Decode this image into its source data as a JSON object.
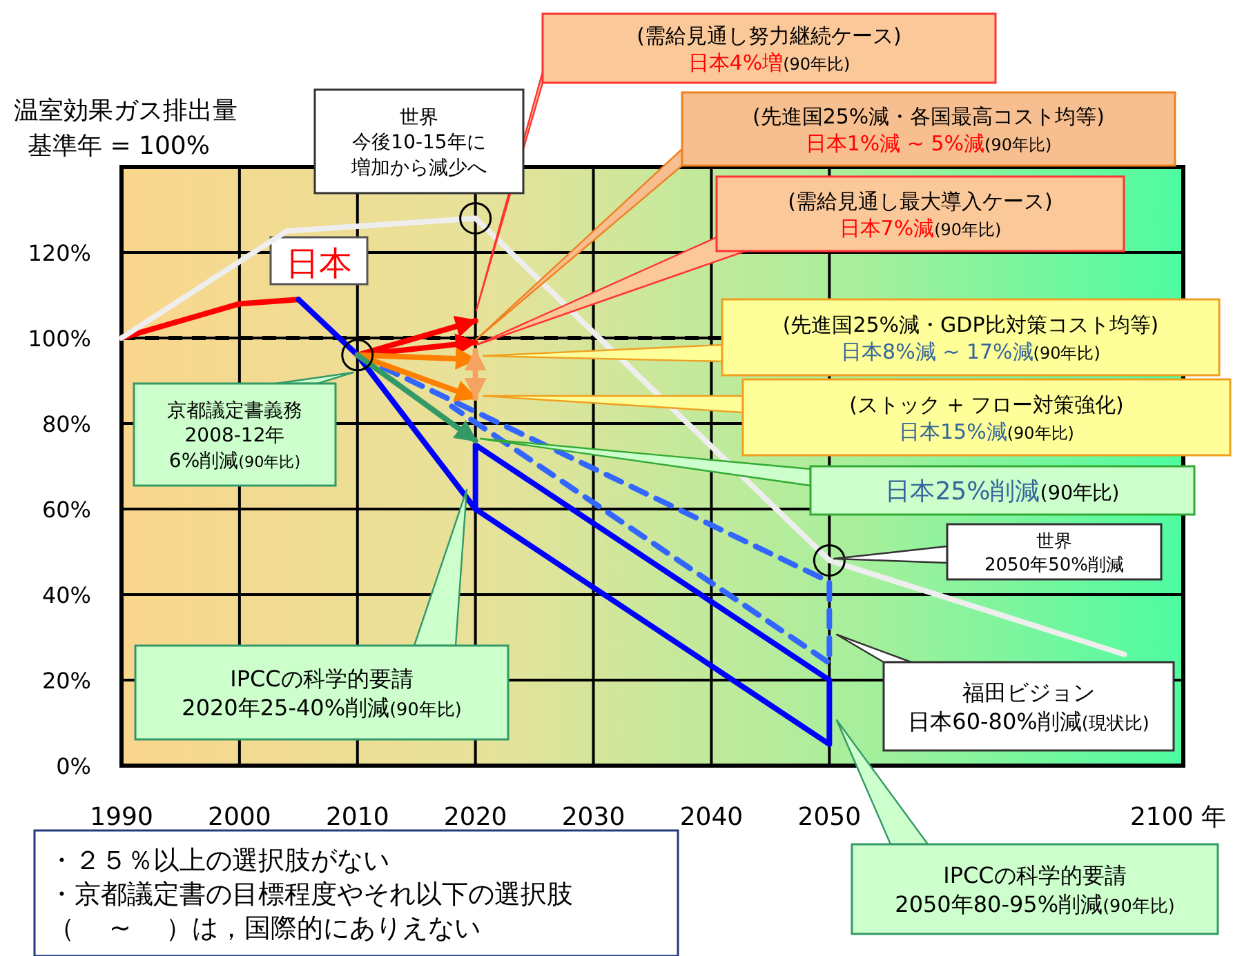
{
  "chart_data": {
    "type": "line",
    "ylabel": "温室効果ガス排出量",
    "xlabel": "2100 年",
    "xlim": [
      1990,
      2080
    ],
    "ylim": [
      0,
      140
    ],
    "xticks": [
      1990,
      2000,
      2010,
      2020,
      2030,
      2040,
      2050
    ],
    "yticks": [
      {
        "value": 0,
        "label": "0%"
      },
      {
        "value": 20,
        "label": "20%"
      },
      {
        "value": 40,
        "label": "40%"
      },
      {
        "value": 60,
        "label": "60%"
      },
      {
        "value": 80,
        "label": "80%"
      },
      {
        "value": 100,
        "label": "100%"
      },
      {
        "value": 120,
        "label": "120%"
      }
    ],
    "grid": true,
    "ref_lines": [
      {
        "axis": "y",
        "value": 100,
        "color": "#000000",
        "line_style": "dashed"
      }
    ],
    "series": [
      {
        "name": "日本",
        "color": "#ff0000",
        "x": [
          1990,
          2000,
          2005
        ],
        "values": [
          100,
          108,
          109
        ]
      },
      {
        "color": "#eeeeee",
        "x": [
          1990,
          2004,
          2020,
          2050,
          2075
        ],
        "values": [
          100,
          125,
          128,
          48,
          26
        ]
      },
      {
        "color": "#0000ff",
        "x": [
          2005,
          2010,
          2020,
          2050,
          2050
        ],
        "values": [
          109,
          96,
          60,
          5,
          20
        ]
      },
      {
        "color": "#0000ff",
        "x": [
          2020,
          2020,
          2050
        ],
        "values": [
          60,
          75,
          20
        ]
      },
      {
        "color": "#3366ff",
        "line_style": "dashed",
        "x": [
          2010,
          2050,
          2050,
          2018
        ],
        "values": [
          96,
          43,
          24,
          84
        ]
      },
      {
        "color": "#ff0000",
        "x": [
          2010,
          2020
        ],
        "values": [
          96,
          104
        ]
      },
      {
        "color": "#ff0000",
        "x": [
          2010,
          2020
        ],
        "values": [
          96,
          99
        ]
      },
      {
        "color": "#ff7f00",
        "x": [
          2010,
          2020
        ],
        "values": [
          96,
          95
        ]
      },
      {
        "color": "#ff7f00",
        "x": [
          2010,
          2020
        ],
        "values": [
          96,
          86
        ]
      },
      {
        "color": "#339966",
        "x": [
          2010,
          2020
        ],
        "values": [
          96,
          76
        ]
      },
      {
        "color": "#f4a460",
        "x": [
          2020,
          2020
        ],
        "values": [
          97,
          86
        ]
      },
      {
        "type": "scatter",
        "marker": "circle",
        "color": "#000000",
        "x": [
          2010,
          2020,
          2050
        ],
        "values": [
          96,
          128,
          48
        ]
      }
    ],
    "annotations": [
      "基準年 = 100%",
      "(需給見通し努力継続ケース)",
      "日本4%増(90年比)",
      "(先進国25%減・各国最高コスト均等)",
      "日本1%減 ~ 5%減(90年比)",
      "(需給見通し最大導入ケース)",
      "日本7%減(90年比)",
      "(先進国25%減・GDP比対策コスト均等)",
      "日本8%減 ~ 17%減(90年比)",
      "(ストック + フロー対策強化)",
      "日本15%減(90年比)",
      "日本25%削減(90年比)",
      "京都議定書義務",
      "2008-12年",
      "6%削減(90年比)",
      "世界",
      "今後10-15年に",
      "増加から減少へ",
      "世界",
      "2050年50%削減",
      "福田ビジョン",
      "日本60-80%削減(現状比)",
      "IPCCの科学的要請",
      "2020年25-40%削減(90年比)",
      "IPCCの科学的要請",
      "2050年80-95%削減(90年比)",
      "・２５％以上の選択肢がない",
      "・京都議定書の目標程度やそれ以下の選択肢",
      "（　 ~ 　）は，国際的にありえない"
    ]
  }
}
